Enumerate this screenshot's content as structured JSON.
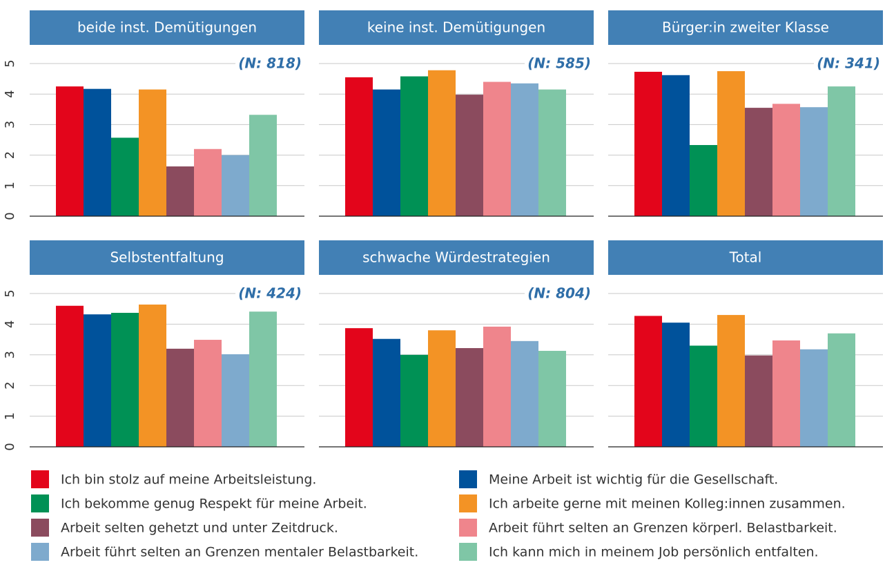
{
  "legend": {
    "items": [
      {
        "name": "Ich bin stolz auf meine Arbeitsleistung.",
        "color": "#e3051b"
      },
      {
        "name": "Meine Arbeit ist wichtig für die Gesellschaft.",
        "color": "#00529b"
      },
      {
        "name": "Ich bekomme genug Respekt für meine Arbeit.",
        "color": "#009155"
      },
      {
        "name": "Ich arbeite gerne mit meinen Kolleg:innen zusammen.",
        "color": "#f39325"
      },
      {
        "name": "Arbeit selten gehetzt und unter Zeitdruck.",
        "color": "#8b4b5e"
      },
      {
        "name": "Arbeit führt selten an Grenzen körperl. Belastbarkeit.",
        "color": "#ef858c"
      },
      {
        "name": "Arbeit führt selten an Grenzen mentaler Belastbarkeit.",
        "color": "#7eaacd"
      },
      {
        "name": "Ich kann mich in meinem Job persönlich entfalten.",
        "color": "#7fc6a6"
      }
    ]
  },
  "chart_data": [
    {
      "type": "bar",
      "title": "beide inst. Demütigungen",
      "annotation": "(N: 818)",
      "values": [
        4.25,
        4.17,
        2.57,
        4.15,
        1.63,
        2.2,
        2.0,
        3.32
      ],
      "ylim": [
        0,
        5
      ],
      "yticks": [
        0,
        1,
        2,
        3,
        4,
        5
      ],
      "grid": true
    },
    {
      "type": "bar",
      "title": "keine inst. Demütigungen",
      "annotation": "(N: 585)",
      "values": [
        4.55,
        4.15,
        4.58,
        4.78,
        3.98,
        4.4,
        4.35,
        4.15
      ],
      "ylim": [
        0,
        5
      ],
      "yticks": [
        0,
        1,
        2,
        3,
        4,
        5
      ],
      "grid": true
    },
    {
      "type": "bar",
      "title": "Bürger:in zweiter Klasse",
      "annotation": "(N: 341)",
      "values": [
        4.73,
        4.62,
        2.33,
        4.75,
        3.55,
        3.68,
        3.57,
        4.25
      ],
      "ylim": [
        0,
        5
      ],
      "yticks": [
        0,
        1,
        2,
        3,
        4,
        5
      ],
      "grid": true
    },
    {
      "type": "bar",
      "title": "Selbstentfaltung",
      "annotation": "(N: 424)",
      "values": [
        4.6,
        4.32,
        4.37,
        4.64,
        3.2,
        3.49,
        3.02,
        4.41
      ],
      "ylim": [
        0,
        5
      ],
      "yticks": [
        0,
        1,
        2,
        3,
        4,
        5
      ],
      "grid": true
    },
    {
      "type": "bar",
      "title": "schwache Würdestrategien",
      "annotation": "(N: 804)",
      "values": [
        3.87,
        3.52,
        3.0,
        3.8,
        3.22,
        3.92,
        3.45,
        3.13
      ],
      "ylim": [
        0,
        5
      ],
      "yticks": [
        0,
        1,
        2,
        3,
        4,
        5
      ],
      "grid": true
    },
    {
      "type": "bar",
      "title": "Total",
      "values": [
        4.27,
        4.05,
        3.3,
        4.3,
        2.98,
        3.47,
        3.18,
        3.7
      ],
      "ylim": [
        0,
        5
      ],
      "yticks": [
        0,
        1,
        2,
        3,
        4,
        5
      ],
      "grid": true
    }
  ]
}
